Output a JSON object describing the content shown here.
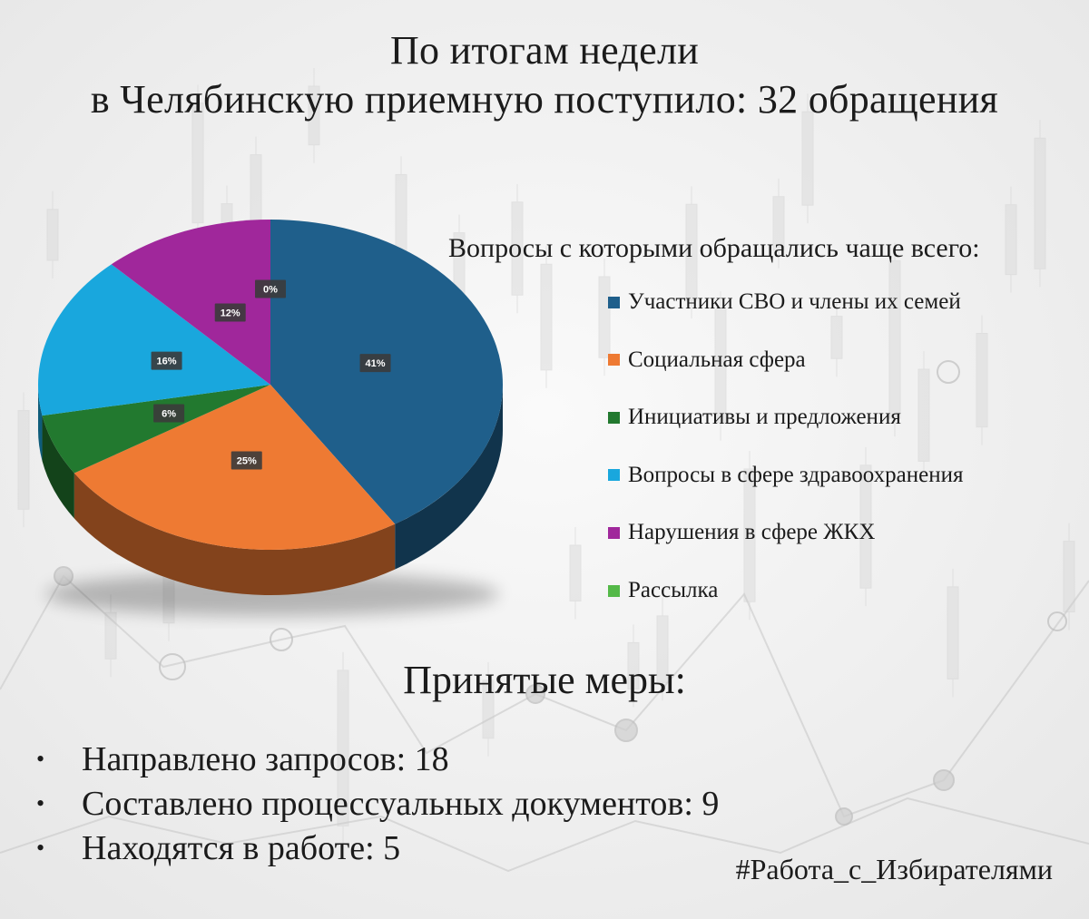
{
  "title": {
    "line1": "По итогам недели",
    "line2": "в Челябинскую приемную поступило: 32 обращения"
  },
  "chart_data": {
    "type": "pie",
    "title": "Вопросы с которыми обращались чаще всего:",
    "legend_position": "right",
    "slices": [
      {
        "label": "Участники СВО и члены их семей",
        "value": 41,
        "value_label": "41%",
        "color": "#1f5f8b"
      },
      {
        "label": "Социальная сфера",
        "value": 25,
        "value_label": "25%",
        "color": "#ee7a33"
      },
      {
        "label": "Инициативы и предложения",
        "value": 6,
        "value_label": "6%",
        "color": "#22792f"
      },
      {
        "label": "Вопросы в сфере здравоохранения",
        "value": 16,
        "value_label": "16%",
        "color": "#19a7dd"
      },
      {
        "label": "Нарушения в сфере ЖКХ",
        "value": 12,
        "value_label": "12%",
        "color": "#a0279b"
      },
      {
        "label": "Рассылка",
        "value": 0,
        "value_label": "0%",
        "color": "#54b948"
      }
    ]
  },
  "measures": {
    "title": "Принятые меры:",
    "items": [
      "Направлено запросов: 18",
      "Составлено процессуальных документов: 9",
      "Находятся в работе: 5"
    ]
  },
  "hashtag": "#Работа_с_Избирателями"
}
